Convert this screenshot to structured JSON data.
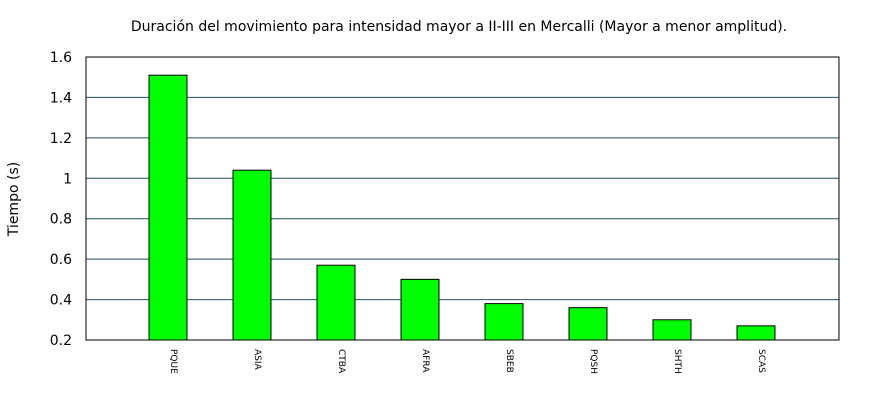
{
  "chart_data": {
    "type": "bar",
    "title": "Duración del movimiento para intensidad mayor a II-III en Mercalli (Mayor a menor amplitud).",
    "xlabel": "",
    "ylabel": "Tiempo (s)",
    "categories": [
      "PQUE",
      "ASIA",
      "CTBA",
      "AFRA",
      "SBEB",
      "PQSH",
      "SHTH",
      "SCAS"
    ],
    "values": [
      1.51,
      1.04,
      0.57,
      0.5,
      0.38,
      0.36,
      0.3,
      0.27
    ],
    "ylim": [
      0.2,
      1.6
    ],
    "yticks": [
      "0.2",
      "0.4",
      "0.6",
      "0.8",
      "1",
      "1.2",
      "1.4",
      "1.6"
    ],
    "grid": true,
    "legend": "none",
    "bar_color": "#00ff00",
    "grid_color": "#1f4f5f"
  }
}
